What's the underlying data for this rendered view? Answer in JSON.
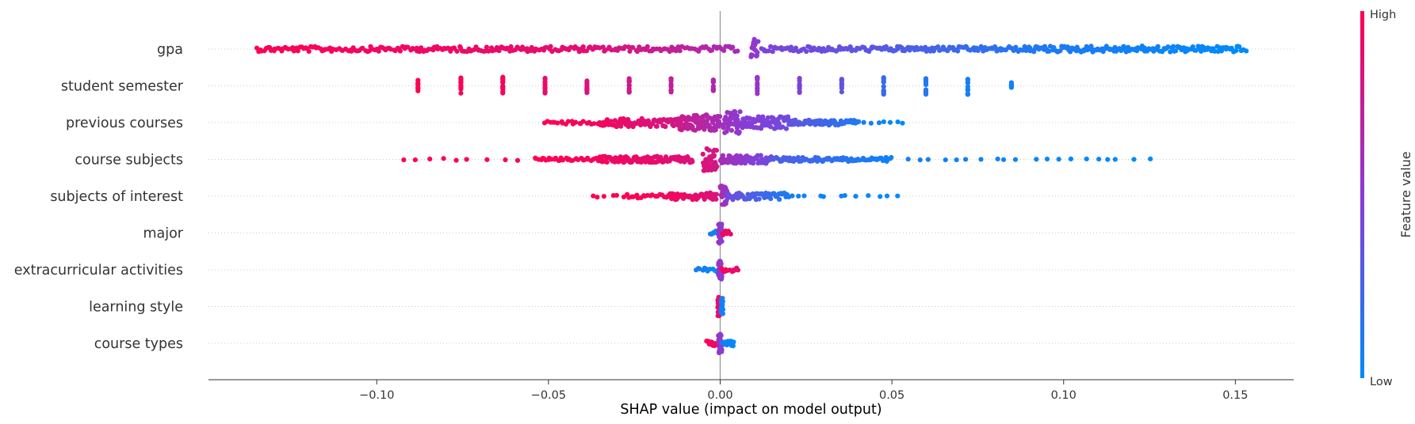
{
  "chart_data": {
    "type": "scatter",
    "subtype": "shap-beeswarm",
    "title": "",
    "xlabel": "SHAP value (impact on model output)",
    "ylabel": "",
    "xlim": [
      -0.149,
      0.167
    ],
    "xticks": [
      -0.1,
      -0.05,
      0.0,
      0.05,
      0.1,
      0.15
    ],
    "xtick_labels": [
      "−0.10",
      "−0.05",
      "0.00",
      "0.05",
      "0.10",
      "0.15"
    ],
    "grid": false,
    "zero_line": 0.0,
    "colorbar": {
      "label": "Feature value",
      "high_label": "High",
      "low_label": "Low",
      "low_color": "#008bfb",
      "mid_color": "#8b3bd4",
      "high_color": "#ff0051"
    },
    "features": [
      {
        "name": "gpa",
        "clusters": [
          {
            "start": -0.135,
            "end": -0.04,
            "count": 175,
            "value": [
              0.98,
              0.88
            ],
            "jitter": 0.25
          },
          {
            "start": -0.04,
            "end": 0.005,
            "count": 80,
            "value": [
              0.88,
              0.62
            ],
            "jitter": 0.25
          },
          {
            "start": 0.009,
            "end": 0.011,
            "count": 16,
            "value": [
              0.55,
              0.5
            ],
            "jitter": 1.0
          },
          {
            "start": 0.012,
            "end": 0.05,
            "count": 75,
            "value": [
              0.45,
              0.3
            ],
            "jitter": 0.25
          },
          {
            "start": 0.05,
            "end": 0.09,
            "count": 85,
            "value": [
              0.3,
              0.12
            ],
            "jitter": 0.25
          },
          {
            "start": 0.09,
            "end": 0.153,
            "count": 150,
            "value": [
              0.12,
              0.0
            ],
            "jitter": 0.3
          }
        ]
      },
      {
        "name": "student semester",
        "clusters": [
          {
            "start": -0.088,
            "end": -0.088,
            "count": 8,
            "value": [
              1.0,
              1.0
            ],
            "jitter": 0.55
          },
          {
            "start": -0.0755,
            "end": -0.0755,
            "count": 12,
            "value": [
              0.97,
              0.97
            ],
            "jitter": 0.85
          },
          {
            "start": -0.0633,
            "end": -0.0633,
            "count": 12,
            "value": [
              0.95,
              0.95
            ],
            "jitter": 0.85
          },
          {
            "start": -0.051,
            "end": -0.051,
            "count": 11,
            "value": [
              0.9,
              0.9
            ],
            "jitter": 0.75
          },
          {
            "start": -0.0388,
            "end": -0.0388,
            "count": 11,
            "value": [
              0.84,
              0.84
            ],
            "jitter": 0.75
          },
          {
            "start": -0.0265,
            "end": -0.0265,
            "count": 11,
            "value": [
              0.78,
              0.78
            ],
            "jitter": 0.75
          },
          {
            "start": -0.0143,
            "end": -0.0143,
            "count": 11,
            "value": [
              0.72,
              0.72
            ],
            "jitter": 0.75
          },
          {
            "start": -0.002,
            "end": -0.002,
            "count": 10,
            "value": [
              0.66,
              0.66
            ],
            "jitter": 0.6
          },
          {
            "start": 0.0108,
            "end": 0.0108,
            "count": 12,
            "value": [
              0.55,
              0.55
            ],
            "jitter": 0.85
          },
          {
            "start": 0.0231,
            "end": 0.0231,
            "count": 11,
            "value": [
              0.45,
              0.45
            ],
            "jitter": 0.75
          },
          {
            "start": 0.0354,
            "end": 0.0354,
            "count": 12,
            "value": [
              0.35,
              0.35
            ],
            "jitter": 0.85
          },
          {
            "start": 0.0476,
            "end": 0.0476,
            "count": 12,
            "value": [
              0.2,
              0.2
            ],
            "jitter": 0.85
          },
          {
            "start": 0.0599,
            "end": 0.0599,
            "count": 12,
            "value": [
              0.12,
              0.12
            ],
            "jitter": 0.85
          },
          {
            "start": 0.0721,
            "end": 0.0721,
            "count": 12,
            "value": [
              0.08,
              0.08
            ],
            "jitter": 0.85
          },
          {
            "start": 0.0848,
            "end": 0.0848,
            "count": 6,
            "value": [
              0.06,
              0.06
            ],
            "jitter": 0.4
          }
        ]
      },
      {
        "name": "previous courses",
        "clusters": [
          {
            "start": -0.051,
            "end": -0.035,
            "count": 22,
            "value": [
              1.0,
              0.95
            ],
            "jitter": 0.15
          },
          {
            "start": -0.035,
            "end": -0.012,
            "count": 95,
            "value": [
              0.95,
              0.8
            ],
            "jitter": 0.4
          },
          {
            "start": -0.012,
            "end": 0.0,
            "count": 85,
            "value": [
              0.78,
              0.62
            ],
            "jitter": 0.8
          },
          {
            "start": 0.001,
            "end": 0.006,
            "count": 40,
            "value": [
              0.58,
              0.52
            ],
            "jitter": 1.1
          },
          {
            "start": 0.006,
            "end": 0.02,
            "count": 70,
            "value": [
              0.5,
              0.4
            ],
            "jitter": 0.6
          },
          {
            "start": 0.02,
            "end": 0.04,
            "count": 70,
            "value": [
              0.35,
              0.12
            ],
            "jitter": 0.25
          },
          {
            "start": 0.04,
            "end": 0.053,
            "count": 8,
            "value": [
              0.1,
              0.0
            ],
            "jitter": 0.1
          }
        ]
      },
      {
        "name": "course subjects",
        "clusters": [
          {
            "start": -0.094,
            "end": -0.06,
            "count": 9,
            "value": [
              1.0,
              0.98
            ],
            "jitter": 0.1
          },
          {
            "start": -0.054,
            "end": -0.035,
            "count": 35,
            "value": [
              1.0,
              0.95
            ],
            "jitter": 0.15
          },
          {
            "start": -0.035,
            "end": -0.008,
            "count": 120,
            "value": [
              0.95,
              0.85
            ],
            "jitter": 0.3
          },
          {
            "start": -0.005,
            "end": -0.001,
            "count": 40,
            "value": [
              0.85,
              0.8
            ],
            "jitter": 1.1
          },
          {
            "start": 0.0,
            "end": 0.015,
            "count": 80,
            "value": [
              0.62,
              0.4
            ],
            "jitter": 0.4
          },
          {
            "start": 0.015,
            "end": 0.05,
            "count": 80,
            "value": [
              0.3,
              0.05
            ],
            "jitter": 0.2
          },
          {
            "start": 0.055,
            "end": 0.124,
            "count": 20,
            "value": [
              0.08,
              0.0
            ],
            "jitter": 0.05
          }
        ]
      },
      {
        "name": "subjects of interest",
        "clusters": [
          {
            "start": -0.037,
            "end": -0.03,
            "count": 5,
            "value": [
              1.0,
              1.0
            ],
            "jitter": 0.1
          },
          {
            "start": -0.028,
            "end": -0.015,
            "count": 20,
            "value": [
              1.0,
              0.95
            ],
            "jitter": 0.2
          },
          {
            "start": -0.015,
            "end": -0.001,
            "count": 55,
            "value": [
              0.95,
              0.85
            ],
            "jitter": 0.35
          },
          {
            "start": 0.0,
            "end": 0.002,
            "count": 25,
            "value": [
              0.65,
              0.55
            ],
            "jitter": 1.0
          },
          {
            "start": 0.002,
            "end": 0.02,
            "count": 55,
            "value": [
              0.4,
              0.1
            ],
            "jitter": 0.35
          },
          {
            "start": 0.02,
            "end": 0.051,
            "count": 12,
            "value": [
              0.08,
              0.0
            ],
            "jitter": 0.1
          }
        ]
      },
      {
        "name": "major",
        "clusters": [
          {
            "start": -0.003,
            "end": -0.0005,
            "count": 8,
            "value": [
              0.1,
              0.05
            ],
            "jitter": 0.2
          },
          {
            "start": -0.0005,
            "end": 0.0005,
            "count": 30,
            "value": [
              0.6,
              0.5
            ],
            "jitter": 1.0
          },
          {
            "start": 0.0005,
            "end": 0.003,
            "count": 8,
            "value": [
              0.95,
              0.9
            ],
            "jitter": 0.2
          }
        ]
      },
      {
        "name": "extracurricular activities",
        "clusters": [
          {
            "start": -0.007,
            "end": -0.0005,
            "count": 12,
            "value": [
              0.1,
              0.0
            ],
            "jitter": 0.2
          },
          {
            "start": -0.0005,
            "end": 0.0005,
            "count": 30,
            "value": [
              0.6,
              0.5
            ],
            "jitter": 1.0
          },
          {
            "start": 0.0005,
            "end": 0.005,
            "count": 12,
            "value": [
              0.95,
              0.9
            ],
            "jitter": 0.2
          }
        ]
      },
      {
        "name": "learning style",
        "clusters": [
          {
            "start": -0.0007,
            "end": -0.0002,
            "count": 20,
            "value": [
              0.95,
              0.9
            ],
            "jitter": 0.9
          },
          {
            "start": 0.0002,
            "end": 0.0008,
            "count": 20,
            "value": [
              0.15,
              0.05
            ],
            "jitter": 0.9
          }
        ]
      },
      {
        "name": "course types",
        "clusters": [
          {
            "start": -0.004,
            "end": -0.0005,
            "count": 12,
            "value": [
              0.98,
              0.9
            ],
            "jitter": 0.25
          },
          {
            "start": -0.0005,
            "end": 0.0005,
            "count": 25,
            "value": [
              0.6,
              0.5
            ],
            "jitter": 1.0
          },
          {
            "start": 0.0005,
            "end": 0.004,
            "count": 12,
            "value": [
              0.1,
              0.0
            ],
            "jitter": 0.25
          }
        ]
      }
    ]
  }
}
